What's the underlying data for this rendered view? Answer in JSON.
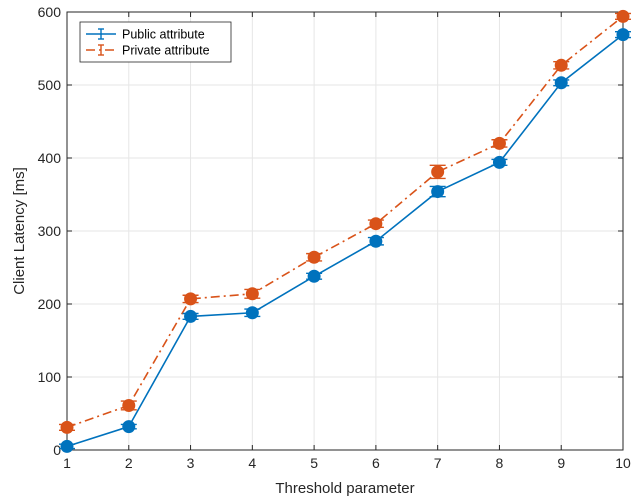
{
  "chart_data": {
    "type": "line",
    "xlabel": "Threshold parameter",
    "ylabel": "Client Latency [ms]",
    "x": [
      1,
      2,
      3,
      4,
      5,
      6,
      7,
      8,
      9,
      10
    ],
    "xlim": [
      1,
      10
    ],
    "ylim": [
      0,
      600
    ],
    "xticks": [
      "1",
      "2",
      "3",
      "4",
      "5",
      "6",
      "7",
      "8",
      "9",
      "10"
    ],
    "yticks": [
      "0",
      "100",
      "200",
      "300",
      "400",
      "500",
      "600"
    ],
    "grid": true,
    "legend_position": "top-left",
    "error_bars": true,
    "series": [
      {
        "name": "Public attribute",
        "color": "#0072BD",
        "line_style": "solid",
        "values": [
          5,
          32,
          183,
          188,
          238,
          286,
          354,
          394,
          503,
          569
        ],
        "errors": [
          3,
          3,
          4,
          5,
          4,
          5,
          7,
          4,
          4,
          4
        ]
      },
      {
        "name": "Private attribute",
        "color": "#D95319",
        "line_style": "dash-dot",
        "values": [
          31,
          61,
          207,
          214,
          264,
          310,
          381,
          420,
          527,
          594
        ],
        "errors": [
          4,
          6,
          5,
          6,
          5,
          5,
          9,
          5,
          5,
          4
        ]
      }
    ]
  }
}
